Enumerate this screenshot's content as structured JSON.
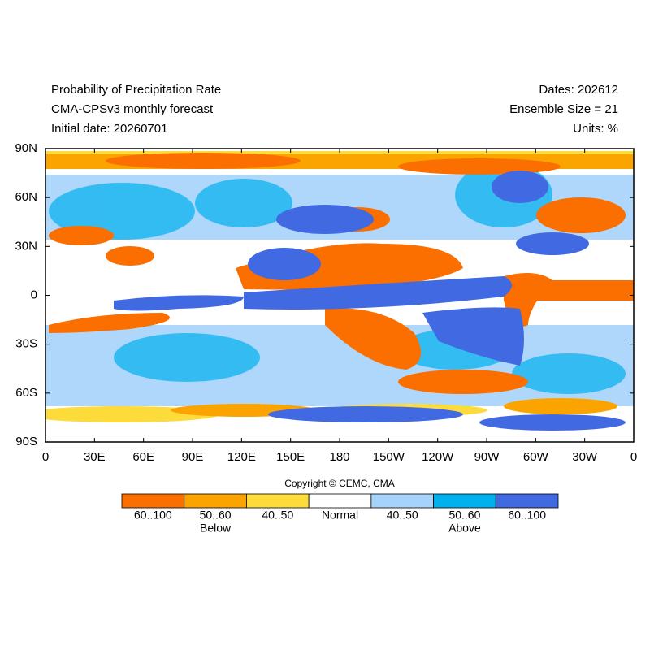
{
  "header": {
    "title": "Probability of Precipitation Rate",
    "subtitle": "CMA-CPSv3 monthly forecast",
    "initial_date": "Initial date: 20260701",
    "dates": "Dates: 202612",
    "ensemble": "Ensemble Size = 21",
    "units": "Units: %"
  },
  "map": {
    "lon_labels": [
      "0",
      "30E",
      "60E",
      "90E",
      "120E",
      "150E",
      "180",
      "150W",
      "120W",
      "90W",
      "60W",
      "30W",
      "0"
    ],
    "lat_labels": [
      "90N",
      "60N",
      "30N",
      "0",
      "30S",
      "60S",
      "90S"
    ]
  },
  "copyright": "Copyright © CEMC, CMA",
  "legend": {
    "items": [
      {
        "label": "60..100",
        "color": "#fb6e00"
      },
      {
        "label": "50..60",
        "color": "#fba400"
      },
      {
        "label": "40..50",
        "color": "#fcdb3a"
      },
      {
        "label": "Normal",
        "color": "#ffffff"
      },
      {
        "label": "40..50",
        "color": "#a5d3fb"
      },
      {
        "label": "50..60",
        "color": "#00b1ee"
      },
      {
        "label": "60..100",
        "color": "#4169e1"
      }
    ],
    "below": "Below",
    "above": "Above"
  }
}
